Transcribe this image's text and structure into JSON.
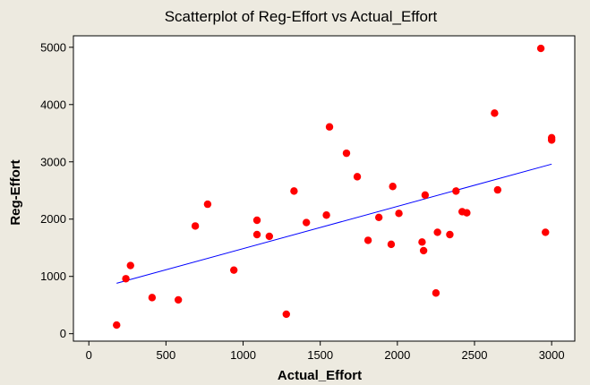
{
  "chart_data": {
    "type": "scatter",
    "title": "Scatterplot of Reg-Effort vs Actual_Effort",
    "xlabel": "Actual_Effort",
    "ylabel": "Reg-Effort",
    "xlim": [
      -100,
      3150
    ],
    "ylim": [
      -130,
      5200
    ],
    "xticks": [
      0,
      500,
      1000,
      1500,
      2000,
      2500,
      3000
    ],
    "yticks": [
      0,
      1000,
      2000,
      3000,
      4000,
      5000
    ],
    "grid": false,
    "legend": "none",
    "colors": {
      "background": "#EDEAE0",
      "plot_area": "#FFFFFF",
      "points": "#FF0000",
      "fit_line": "#0000FF"
    },
    "fit_line": {
      "x": [
        180,
        3000
      ],
      "y": [
        880,
        2960
      ]
    },
    "points": [
      {
        "x": 180,
        "y": 150
      },
      {
        "x": 240,
        "y": 960
      },
      {
        "x": 270,
        "y": 1190
      },
      {
        "x": 410,
        "y": 630
      },
      {
        "x": 580,
        "y": 590
      },
      {
        "x": 690,
        "y": 1880
      },
      {
        "x": 770,
        "y": 2260
      },
      {
        "x": 940,
        "y": 1110
      },
      {
        "x": 1090,
        "y": 1980
      },
      {
        "x": 1090,
        "y": 1730
      },
      {
        "x": 1170,
        "y": 1700
      },
      {
        "x": 1280,
        "y": 340
      },
      {
        "x": 1330,
        "y": 2490
      },
      {
        "x": 1410,
        "y": 1940
      },
      {
        "x": 1540,
        "y": 2070
      },
      {
        "x": 1560,
        "y": 3610
      },
      {
        "x": 1670,
        "y": 3150
      },
      {
        "x": 1740,
        "y": 2740
      },
      {
        "x": 1810,
        "y": 1630
      },
      {
        "x": 1880,
        "y": 2030
      },
      {
        "x": 1960,
        "y": 1560
      },
      {
        "x": 1970,
        "y": 2570
      },
      {
        "x": 2010,
        "y": 2100
      },
      {
        "x": 2160,
        "y": 1600
      },
      {
        "x": 2170,
        "y": 1450
      },
      {
        "x": 2180,
        "y": 2420
      },
      {
        "x": 2250,
        "y": 710
      },
      {
        "x": 2260,
        "y": 1770
      },
      {
        "x": 2340,
        "y": 1730
      },
      {
        "x": 2380,
        "y": 2490
      },
      {
        "x": 2420,
        "y": 2130
      },
      {
        "x": 2450,
        "y": 2110
      },
      {
        "x": 2630,
        "y": 3850
      },
      {
        "x": 2650,
        "y": 2510
      },
      {
        "x": 2930,
        "y": 4980
      },
      {
        "x": 2960,
        "y": 1770
      },
      {
        "x": 3000,
        "y": 3380
      },
      {
        "x": 3000,
        "y": 3420
      }
    ]
  }
}
